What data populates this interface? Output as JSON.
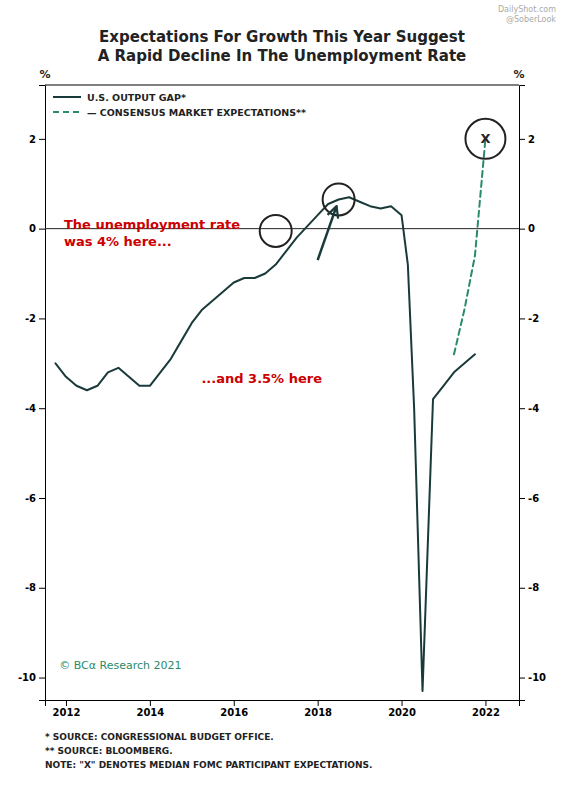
{
  "chart_data": {
    "type": "line",
    "title": "Expectations For Growth This Year Suggest",
    "subtitle": "A Rapid Decline In The Unemployment Rate",
    "watermarks": [
      "DailyShot.com",
      "@SoberLook"
    ],
    "xlim": [
      2011.5,
      2022.8
    ],
    "xticks": [
      2012,
      2014,
      2016,
      2018,
      2020,
      2022
    ],
    "ylim": [
      -10.5,
      3.2
    ],
    "yticks": [
      -10,
      -8,
      -6,
      -4,
      -2,
      0,
      2
    ],
    "y2lim": [
      -10.5,
      3.2
    ],
    "y2ticks": [
      -10,
      -8,
      -6,
      -4,
      -2,
      0,
      2
    ],
    "y_label": "%",
    "y2_label": "%",
    "grid": false,
    "legend": "upper left",
    "series": [
      {
        "name": "U.S. OUTPUT GAP*",
        "color": "#1a3a3a",
        "line_style": "solid",
        "x": [
          2011.75,
          2012.0,
          2012.25,
          2012.5,
          2012.75,
          2013.0,
          2013.25,
          2013.5,
          2013.75,
          2014.0,
          2014.25,
          2014.5,
          2014.75,
          2015.0,
          2015.25,
          2015.5,
          2015.75,
          2016.0,
          2016.25,
          2016.5,
          2016.75,
          2017.0,
          2017.25,
          2017.5,
          2017.75,
          2018.0,
          2018.25,
          2018.5,
          2018.75,
          2019.0,
          2019.25,
          2019.5,
          2019.75,
          2020.0,
          2020.15,
          2020.3,
          2020.5,
          2020.75,
          2021.0,
          2021.25,
          2021.5,
          2021.75
        ],
        "values": [
          -3.0,
          -3.3,
          -3.5,
          -3.6,
          -3.5,
          -3.2,
          -3.1,
          -3.3,
          -3.5,
          -3.5,
          -3.2,
          -2.9,
          -2.5,
          -2.1,
          -1.8,
          -1.6,
          -1.4,
          -1.2,
          -1.1,
          -1.1,
          -1.0,
          -0.8,
          -0.5,
          -0.2,
          0.05,
          0.3,
          0.55,
          0.65,
          0.7,
          0.6,
          0.5,
          0.45,
          0.5,
          0.3,
          -0.8,
          -4.0,
          -10.3,
          -3.8,
          -3.5,
          -3.2,
          -3.0,
          -2.8
        ]
      },
      {
        "name": "— CONSENSUS MARKET EXPECTATIONS**",
        "color": "#2a8a6a",
        "line_style": "dashed",
        "x": [
          2021.25,
          2021.5,
          2021.75,
          2022.0
        ],
        "values": [
          -2.8,
          -1.8,
          -0.6,
          2.0
        ]
      }
    ],
    "hlines": [
      0
    ],
    "highlights": [
      {
        "x": 2017.0,
        "y": -0.05
      },
      {
        "x": 2018.5,
        "y": 0.65
      }
    ],
    "fomc_marker": {
      "x": 2022.0,
      "y": 2.0,
      "label": "X"
    },
    "arrow": {
      "x": [
        2018.0,
        2018.45
      ],
      "y": [
        -0.7,
        0.5
      ]
    },
    "annotations": [
      {
        "text": "The unemployment rate\nwas 4% here...",
        "color": "#cc0000"
      },
      {
        "text": "...and 3.5% here",
        "color": "#cc0000"
      }
    ],
    "copyright": "© BCα Research 2021",
    "notes": [
      "* SOURCE: CONGRESSIONAL BUDGET OFFICE.",
      "** SOURCE: BLOOMBERG.",
      "NOTE: \"X\" DENOTES MEDIAN FOMC PARTICIPANT EXPECTATIONS."
    ]
  }
}
